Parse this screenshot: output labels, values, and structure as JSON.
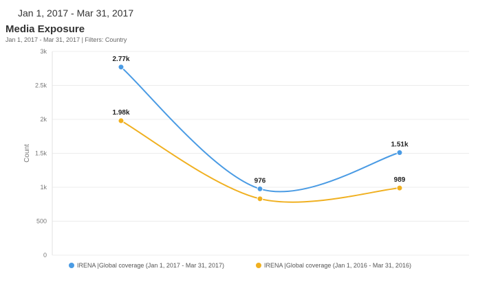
{
  "header": {
    "date_range": "Jan 1, 2017 - Mar 31, 2017",
    "title": "Media Exposure",
    "subtitle": "Jan 1, 2017 - Mar 31, 2017 |  Filters: Country"
  },
  "chart_data": {
    "type": "line",
    "title": "Media Exposure",
    "xlabel": "",
    "ylabel": "Count",
    "ylim": [
      0,
      3000
    ],
    "yticks": [
      0,
      500,
      1000,
      1500,
      2000,
      2500,
      3000
    ],
    "ytick_labels": [
      "0",
      "500",
      "1k",
      "1.5k",
      "2k",
      "2.5k",
      "3k"
    ],
    "grid": true,
    "legend": "bottom",
    "series": [
      {
        "name": "IRENA |Global coverage (Jan 1, 2017 - Mar 31, 2017)",
        "color": "#4a9be4",
        "values": [
          2770,
          976,
          1510
        ],
        "labels": [
          "2.77k",
          "976",
          "1.51k"
        ]
      },
      {
        "name": "IRENA |Global coverage (Jan 1, 2016 - Mar 31, 2016)",
        "color": "#f0b020",
        "values": [
          1980,
          830,
          989
        ],
        "labels": [
          "1.98k",
          "",
          "989"
        ]
      }
    ]
  }
}
